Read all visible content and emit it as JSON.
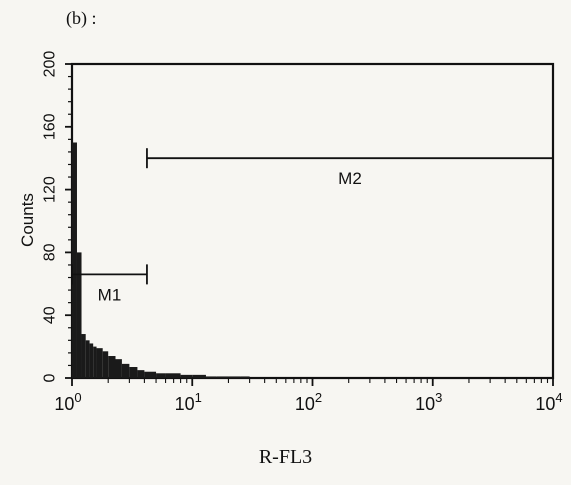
{
  "panel_label": "(b) :",
  "chart_data": {
    "type": "histogram",
    "x_scale": "log",
    "xlabel": "R-FL3",
    "ylabel": "Counts",
    "xlim": [
      1,
      10000
    ],
    "ylim": [
      0,
      200
    ],
    "x_ticks": [
      {
        "value": 1,
        "base": "10",
        "exp": "0"
      },
      {
        "value": 10,
        "base": "10",
        "exp": "1"
      },
      {
        "value": 100,
        "base": "10",
        "exp": "2"
      },
      {
        "value": 1000,
        "base": "10",
        "exp": "3"
      },
      {
        "value": 10000,
        "base": "10",
        "exp": "4"
      }
    ],
    "y_ticks": [
      "0",
      "40",
      "80",
      "120",
      "160",
      "200"
    ],
    "grid": false,
    "histogram": {
      "x": [
        1.0,
        1.1,
        1.2,
        1.3,
        1.4,
        1.5,
        1.6,
        1.8,
        2.0,
        2.3,
        2.6,
        3.0,
        3.5,
        4.0,
        5.0,
        6.0,
        8.0,
        10.0,
        13.0,
        16.0,
        20.0,
        25.0,
        30.0,
        40.0,
        50.0
      ],
      "counts": [
        150,
        80,
        28,
        24,
        22,
        20,
        19,
        17,
        14,
        12,
        9,
        7,
        5,
        4,
        3,
        3,
        2,
        2,
        1,
        1,
        1,
        1,
        0,
        0,
        0
      ]
    },
    "markers": [
      {
        "label": "M1",
        "x_start": 1,
        "x_end": 4.2,
        "y": 66
      },
      {
        "label": "M2",
        "x_start": 4.2,
        "x_end": 10000,
        "y": 140
      }
    ]
  }
}
